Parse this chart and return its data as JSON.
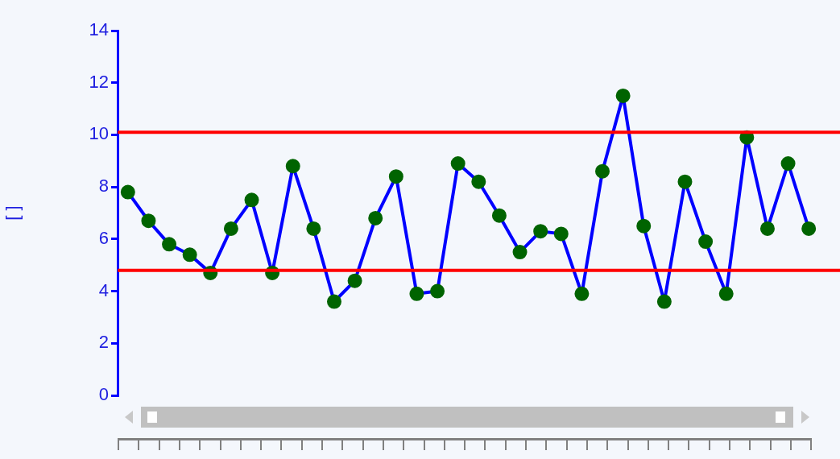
{
  "chart_data": {
    "type": "line",
    "ylabel": "[ ]",
    "categories": [
      null,
      null,
      null,
      null,
      null,
      null,
      null,
      null,
      null,
      null,
      null,
      null,
      null,
      null,
      null,
      null,
      null,
      null,
      null,
      null,
      null,
      null,
      null,
      null,
      null,
      null,
      null,
      null,
      null,
      null,
      null,
      null,
      null,
      null
    ],
    "series": [
      {
        "color": "#0000ff",
        "colors": [
          "#006400",
          "#006400",
          "#006400",
          "#006400",
          "#006400",
          "#006400",
          "#006400",
          "#006400",
          "#006400",
          "#006400",
          "#006400",
          "#006400",
          "#006400",
          "#006400",
          "#006400",
          "#006400",
          "#006400",
          "#006400",
          "#006400",
          "#006400",
          "#006400",
          "#006400",
          "#006400",
          "#006400",
          "#006400",
          "#006400",
          "#006400",
          "#006400",
          "#006400",
          "#006400",
          "#006400",
          "#006400",
          "#006400",
          "#006400"
        ],
        "values": [
          7.8,
          6.7,
          5.8,
          5.4,
          4.7,
          6.4,
          7.5,
          4.7,
          8.8,
          6.4,
          3.6,
          4.4,
          6.8,
          8.4,
          3.9,
          4.0,
          8.9,
          8.2,
          6.9,
          5.5,
          6.3,
          6.2,
          3.9,
          8.6,
          11.5,
          6.5,
          3.6,
          8.2,
          5.9,
          3.9,
          9.9,
          6.4,
          8.9,
          6.4
        ]
      }
    ],
    "marker": "circle",
    "ylim": [
      0,
      14
    ],
    "yticks": [
      0,
      2,
      4,
      6,
      8,
      10,
      12,
      14
    ],
    "ref_lines": [
      {
        "axis": "y",
        "value": 10.1,
        "color": "#ff0000"
      },
      {
        "axis": "y",
        "value": 4.8,
        "color": "#ff0000"
      }
    ],
    "grid": false,
    "legend": false,
    "tick_labels": "y"
  }
}
